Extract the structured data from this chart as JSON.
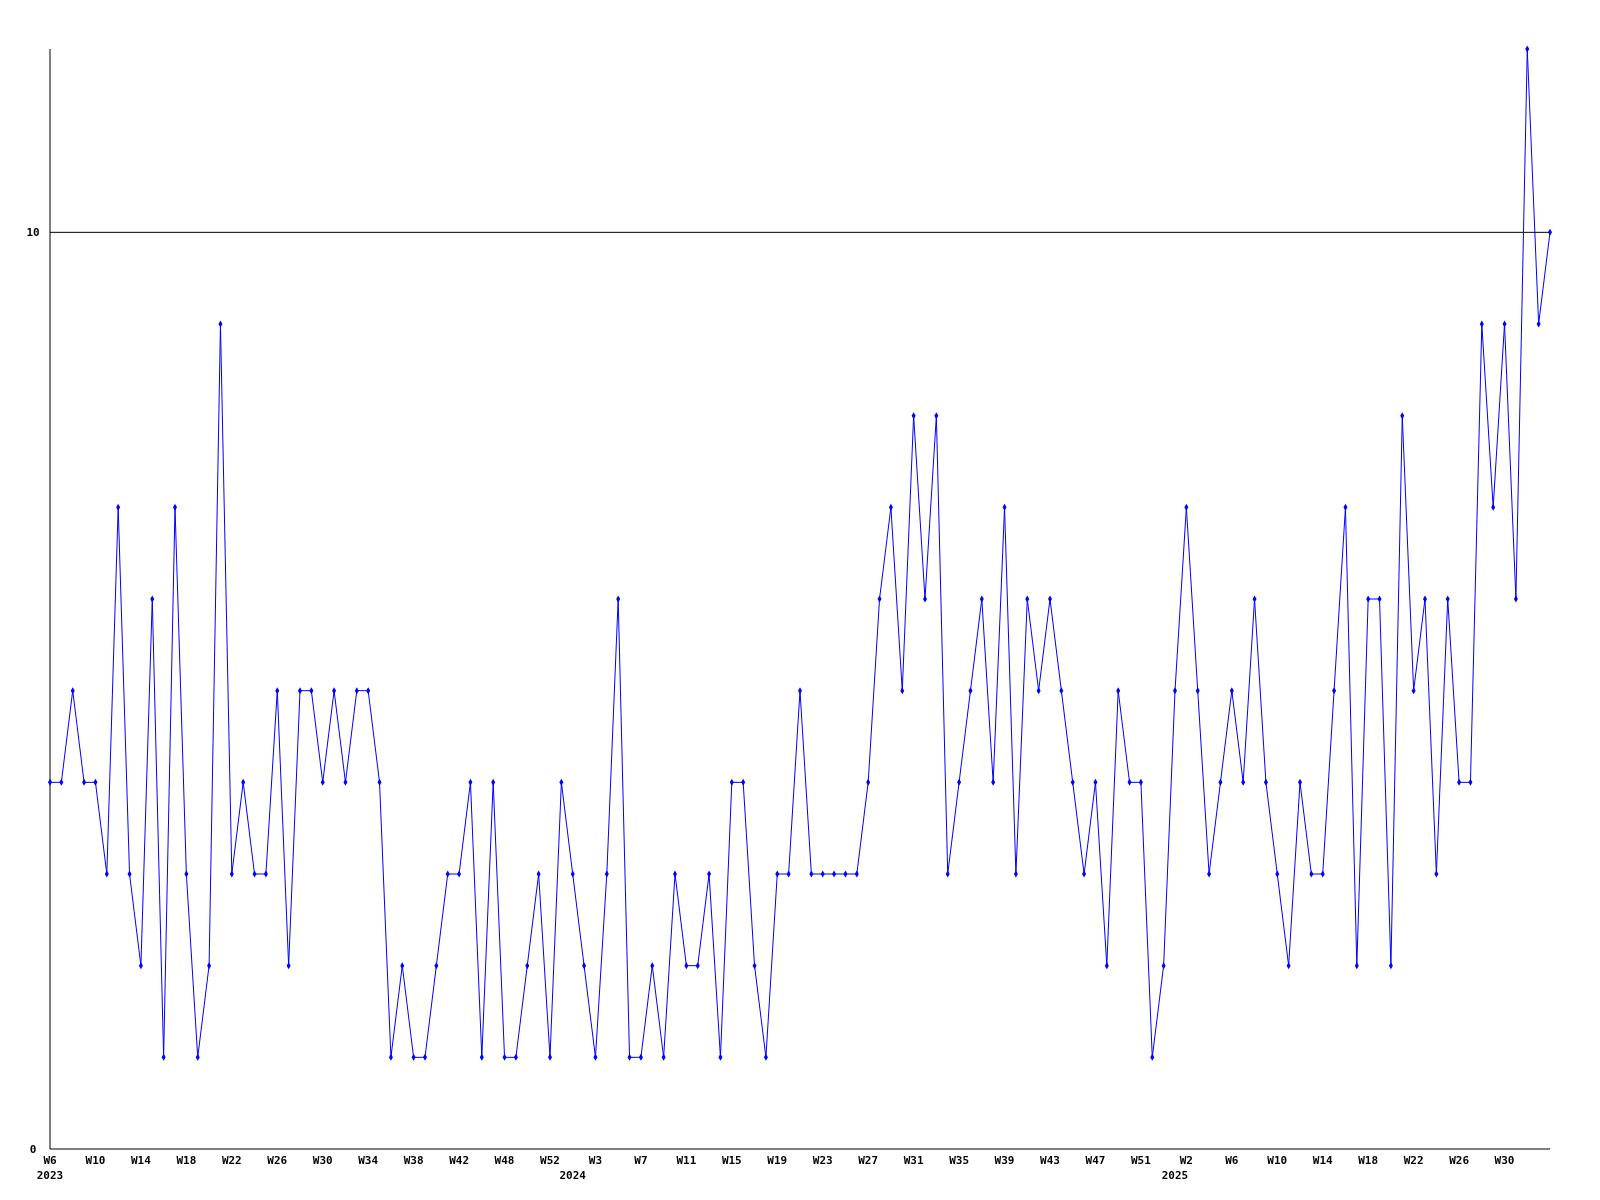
{
  "chart_data": {
    "type": "line",
    "categories": [
      "W6\n2023",
      null,
      null,
      null,
      "W10",
      null,
      null,
      null,
      "W14",
      null,
      null,
      null,
      "W18",
      null,
      null,
      null,
      "W22",
      null,
      null,
      null,
      "W26",
      null,
      null,
      null,
      "W30",
      null,
      null,
      null,
      "W34",
      null,
      null,
      null,
      "W38",
      null,
      null,
      null,
      "W42",
      null,
      null,
      null,
      "W48",
      null,
      null,
      null,
      "W52",
      null,
      "\n2024",
      null,
      "W3",
      null,
      null,
      null,
      "W7",
      null,
      null,
      null,
      "W11",
      null,
      null,
      null,
      "W15",
      null,
      null,
      null,
      "W19",
      null,
      null,
      null,
      "W23",
      null,
      null,
      null,
      "W27",
      null,
      null,
      null,
      "W31",
      null,
      null,
      null,
      "W35",
      null,
      null,
      null,
      "W39",
      null,
      null,
      null,
      "W43",
      null,
      null,
      null,
      "W47",
      null,
      null,
      null,
      "W51",
      null,
      null,
      "\n2025",
      "W2",
      null,
      null,
      null,
      "W6",
      null,
      null,
      null,
      "W10",
      null,
      null,
      null,
      "W14",
      null,
      null,
      null,
      "W18",
      null,
      null,
      null,
      "W22",
      null,
      null,
      null,
      "W26",
      null,
      null,
      null,
      "W30",
      null,
      null,
      null,
      null
    ],
    "series": [
      {
        "color": "#0000ff",
        "values": [
          4,
          4,
          5,
          4,
          4,
          3,
          7,
          3,
          2,
          6,
          1,
          7,
          3,
          1,
          2,
          9,
          3,
          4,
          3,
          3,
          5,
          2,
          5,
          5,
          4,
          5,
          4,
          5,
          5,
          4,
          1,
          2,
          1,
          1,
          2,
          3,
          3,
          4,
          1,
          4,
          1,
          1,
          2,
          3,
          1,
          4,
          3,
          2,
          1,
          3,
          6,
          1,
          1,
          2,
          1,
          3,
          2,
          2,
          3,
          1,
          4,
          4,
          2,
          1,
          3,
          3,
          5,
          3,
          3,
          3,
          3,
          3,
          4,
          6,
          7,
          5,
          8,
          6,
          8,
          3,
          4,
          5,
          6,
          4,
          7,
          3,
          6,
          5,
          6,
          5,
          4,
          3,
          4,
          2,
          5,
          4,
          4,
          1,
          2,
          5,
          7,
          5,
          3,
          4,
          5,
          4,
          6,
          4,
          3,
          2,
          4,
          3,
          3,
          5,
          7,
          2,
          6,
          6,
          2,
          8,
          5,
          6,
          3,
          6,
          4,
          4,
          9,
          7,
          9,
          6,
          12,
          9,
          10
        ]
      }
    ],
    "ylim": [
      0,
      12
    ],
    "yticks": [
      0,
      10
    ],
    "ref_lines": [
      {
        "axis": "y",
        "value": 10,
        "color": "#000000"
      }
    ],
    "marker": "diamond"
  }
}
